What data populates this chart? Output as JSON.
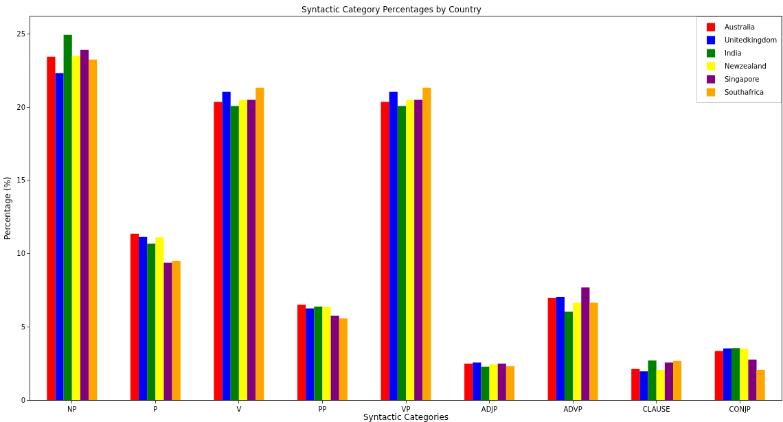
{
  "chart_data": {
    "type": "bar",
    "title": "Syntactic Category Percentages by Country",
    "xlabel": "Syntactic Categories",
    "ylabel": "Percentage (%)",
    "categories": [
      "NP",
      "P",
      "V",
      "PP",
      "VP",
      "ADJP",
      "ADVP",
      "CLAUSE",
      "CONJP"
    ],
    "series": [
      {
        "name": "Australia",
        "color": "#ff0000",
        "values": [
          23.45,
          11.35,
          20.36,
          6.52,
          20.36,
          2.49,
          6.98,
          2.12,
          3.35
        ]
      },
      {
        "name": "Unitedkingdom",
        "color": "#0000ff",
        "values": [
          22.33,
          11.16,
          21.06,
          6.26,
          21.06,
          2.56,
          7.03,
          1.96,
          3.53
        ]
      },
      {
        "name": "India",
        "color": "#008000",
        "values": [
          24.95,
          10.69,
          20.08,
          6.39,
          20.08,
          2.27,
          6.04,
          2.7,
          3.55
        ]
      },
      {
        "name": "Newzealand",
        "color": "#ffff00",
        "values": [
          23.5,
          11.12,
          20.5,
          6.38,
          20.5,
          2.44,
          6.65,
          2.07,
          3.5
        ]
      },
      {
        "name": "Singapore",
        "color": "#800080",
        "values": [
          23.92,
          9.38,
          20.5,
          5.77,
          20.5,
          2.49,
          7.7,
          2.56,
          2.76
        ]
      },
      {
        "name": "Southafrica",
        "color": "#ffa500",
        "values": [
          23.26,
          9.52,
          21.34,
          5.58,
          21.34,
          2.32,
          6.65,
          2.68,
          2.07
        ]
      }
    ],
    "ylim": [
      0,
      26.2
    ],
    "yticks": [
      0,
      5,
      10,
      15,
      20,
      25
    ],
    "grid": false,
    "legend": "top right"
  }
}
